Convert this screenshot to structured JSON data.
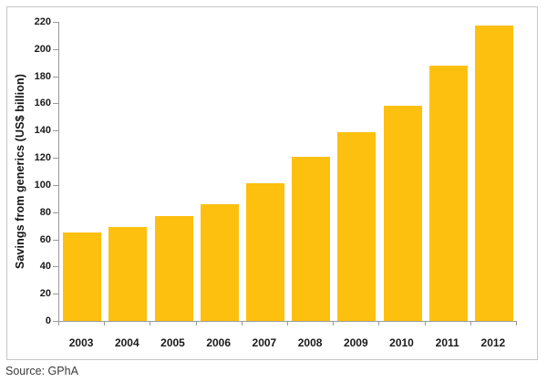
{
  "source_note": "Source: GPhA",
  "chart_data": {
    "type": "bar",
    "categories": [
      "2003",
      "2004",
      "2005",
      "2006",
      "2007",
      "2008",
      "2009",
      "2010",
      "2011",
      "2012"
    ],
    "values": [
      65,
      69,
      77,
      86,
      101,
      121,
      139,
      158,
      188,
      217
    ],
    "title": "",
    "xlabel": "",
    "ylabel": "Savings from generics (US$ billion)",
    "ylim": [
      0,
      220
    ],
    "yticks": [
      0,
      20,
      40,
      60,
      80,
      100,
      120,
      140,
      160,
      180,
      200,
      220
    ],
    "grid": false,
    "legend": "none",
    "bar_color": "#FEC00E",
    "axis_color": "#999999",
    "tick_label_color": "#1a1a1a"
  }
}
